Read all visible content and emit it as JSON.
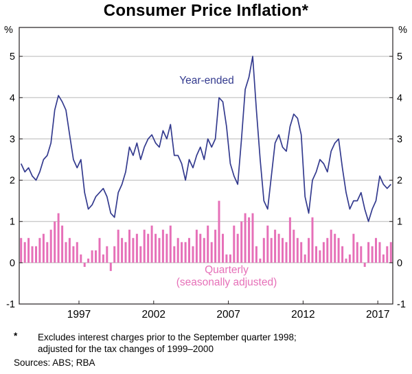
{
  "title": "Consumer Price Inflation*",
  "axis": {
    "left_unit": "%",
    "right_unit": "%"
  },
  "chart_data": {
    "type": "mixed",
    "x_start_year": 1993,
    "x_end_year": 2018,
    "frequency": "quarterly",
    "x_tick_years": [
      1997,
      2002,
      2007,
      2012,
      2017
    ],
    "ylim": [
      -1,
      5.7
    ],
    "y_ticks": [
      -1,
      0,
      1,
      2,
      3,
      4,
      5
    ],
    "y_unit": "%",
    "grid": true,
    "series": [
      {
        "name": "Year-ended",
        "type": "line",
        "color": "#333a8e",
        "values": [
          2.4,
          2.2,
          2.3,
          2.1,
          2.0,
          2.2,
          2.5,
          2.6,
          2.9,
          3.7,
          4.05,
          3.9,
          3.7,
          3.1,
          2.5,
          2.3,
          2.5,
          1.7,
          1.3,
          1.4,
          1.6,
          1.7,
          1.8,
          1.6,
          1.2,
          1.1,
          1.7,
          1.9,
          2.2,
          2.8,
          2.6,
          2.9,
          2.5,
          2.8,
          3.0,
          3.1,
          2.9,
          2.8,
          3.2,
          3.0,
          3.35,
          2.6,
          2.6,
          2.4,
          2.0,
          2.5,
          2.3,
          2.6,
          2.8,
          2.5,
          3.0,
          2.8,
          3.0,
          4.0,
          3.9,
          3.3,
          2.4,
          2.1,
          1.9,
          3.0,
          4.2,
          4.5,
          5.0,
          3.7,
          2.5,
          1.5,
          1.3,
          2.1,
          2.9,
          3.1,
          2.8,
          2.7,
          3.3,
          3.6,
          3.5,
          3.1,
          1.6,
          1.2,
          2.0,
          2.2,
          2.5,
          2.4,
          2.2,
          2.7,
          2.9,
          3.0,
          2.3,
          1.7,
          1.3,
          1.5,
          1.5,
          1.7,
          1.3,
          1.0,
          1.3,
          1.5,
          2.1,
          1.9,
          1.8,
          1.9
        ]
      },
      {
        "name": "Quarterly (seasonally adjusted)",
        "type": "bar",
        "color": "#e670b8",
        "values": [
          0.6,
          0.5,
          0.6,
          0.4,
          0.4,
          0.6,
          0.7,
          0.5,
          0.8,
          1.0,
          1.2,
          0.9,
          0.5,
          0.6,
          0.4,
          0.5,
          0.2,
          -0.1,
          0.1,
          0.3,
          0.3,
          0.6,
          0.2,
          0.4,
          -0.2,
          0.4,
          0.8,
          0.6,
          0.5,
          0.8,
          0.6,
          0.7,
          0.4,
          0.8,
          0.7,
          0.9,
          0.7,
          0.6,
          0.8,
          0.7,
          0.9,
          0.4,
          0.6,
          0.5,
          0.5,
          0.6,
          0.4,
          0.8,
          0.7,
          0.6,
          0.9,
          0.5,
          0.8,
          1.5,
          0.7,
          0.2,
          0.2,
          0.9,
          0.7,
          1.0,
          1.2,
          1.1,
          1.2,
          0.4,
          0.1,
          0.6,
          0.9,
          0.6,
          0.8,
          0.7,
          0.6,
          0.5,
          1.1,
          0.8,
          0.6,
          0.5,
          0.2,
          0.6,
          1.1,
          0.4,
          0.3,
          0.5,
          0.6,
          0.8,
          0.7,
          0.6,
          0.4,
          0.1,
          0.2,
          0.7,
          0.5,
          0.4,
          -0.1,
          0.5,
          0.4,
          0.6,
          0.5,
          0.2,
          0.4,
          0.5
        ]
      }
    ],
    "annotations": [
      {
        "text": "Year-ended",
        "color": "#333a8e"
      },
      {
        "text": "Quarterly",
        "color": "#e670b8"
      },
      {
        "text": "(seasonally adjusted)",
        "color": "#e670b8"
      }
    ]
  },
  "footnote": {
    "marker": "*",
    "line1": "Excludes interest charges prior to the September quarter 1998;",
    "line2": "adjusted for the tax changes of 1999–2000",
    "sources": "Sources: ABS; RBA"
  }
}
